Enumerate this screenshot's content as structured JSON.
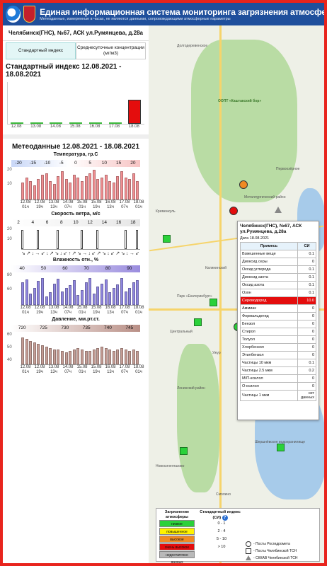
{
  "header": {
    "title": "Единая информационная система мониторинга загрязнения атмосферного возд",
    "subtitle": "Метеоданные, измеренные в часах, не являются данными, сопровождающими атмосферные параметры"
  },
  "station": "Челябинск(ГНС), №67, АСК ул.Румянцева, д.28а",
  "tabs": [
    {
      "label": "Стандартный индекс",
      "active": true
    },
    {
      "label": "Среднесуточные концентрации (мг/м3)",
      "active": false
    }
  ],
  "si": {
    "title": "Стандартный индекс 12.08.2021 - 18.08.2021",
    "dates": [
      "12.08",
      "13.08",
      "14.08",
      "15.08",
      "16.08",
      "17.08",
      "18.08"
    ],
    "values": [
      0.1,
      0.1,
      0.1,
      0.1,
      0.1,
      0.1,
      10.0
    ],
    "colors": [
      "#3cb93c",
      "#3cb93c",
      "#3cb93c",
      "#3cb93c",
      "#3cb93c",
      "#3cb93c",
      "#e40d0d"
    ],
    "max": 10
  },
  "meteo": {
    "title": "Метеоданные 12.08.2021 - 18.08.2021",
    "temp": {
      "title": "Температура, гр.С",
      "scale": [
        "-20",
        "-15",
        "-10",
        "-5",
        "0",
        "5",
        "10",
        "15",
        "20"
      ],
      "values": [
        11,
        14,
        12,
        9,
        13,
        16,
        17,
        12,
        10,
        15,
        18,
        13,
        11,
        16,
        14,
        12,
        15,
        17,
        19,
        13,
        14,
        16,
        12,
        11,
        15,
        18,
        14,
        13,
        17,
        12
      ],
      "axis_top": "20",
      "axis_mid": "10"
    },
    "wind": {
      "title": "Скорость ветра, м/с",
      "scale": [
        "2",
        "4",
        "6",
        "8",
        "10",
        "12",
        "14",
        "16",
        "18"
      ],
      "values": [
        18,
        0,
        0,
        0,
        18,
        0,
        0,
        0,
        0,
        18,
        0,
        0,
        0,
        0,
        0,
        18,
        0,
        0,
        0,
        18,
        0,
        0,
        0,
        0,
        0,
        0,
        18,
        0,
        0,
        18
      ],
      "arrows": "↘↗↓→↙↓↗↘↓↙↑↗↘→↓↙↗↘↓↙↗↘↓→↙↓↗↘",
      "axis_top": "20",
      "axis_mid": "10"
    },
    "humidity": {
      "title": "Влажность отн., %",
      "scale": [
        "40",
        "50",
        "60",
        "70",
        "80",
        "90"
      ],
      "values": [
        80,
        85,
        60,
        70,
        82,
        88,
        55,
        62,
        78,
        86,
        64,
        70,
        75,
        84,
        58,
        66,
        80,
        87,
        60,
        72,
        78,
        85,
        62,
        70,
        76,
        88,
        64,
        70,
        80,
        84
      ],
      "axis_top": "80",
      "axis_mid": "60"
    },
    "pressure": {
      "title": "Давление, мм.рт.ст.",
      "scale": [
        "720",
        "725",
        "730",
        "735",
        "740",
        "745"
      ],
      "values": [
        745,
        744,
        742,
        741,
        740,
        739,
        738,
        737,
        736,
        736,
        735,
        734,
        735,
        736,
        737,
        736,
        735,
        735,
        736,
        737,
        738,
        737,
        736,
        735,
        736,
        737,
        736,
        735,
        736,
        735
      ],
      "axis_top": "60",
      "axis_mid": "50",
      "axis_low": "40"
    },
    "xlabels": [
      "12.08 01ч",
      "12.08 19ч",
      "13.08 13ч",
      "14.08 07ч",
      "15.08 01ч",
      "15.08 19ч",
      "16.08 13ч",
      "17.08 07ч",
      "18.08 01ч"
    ]
  },
  "popup": {
    "title": "Челябинск(ГНС), №67, АСК ул.Румянцева, д.28а",
    "date": "Дата 18.08.2021",
    "headers": [
      "Примесь",
      "СИ"
    ],
    "rows": [
      [
        "Взвешенные веще",
        "0.1"
      ],
      [
        "Диоксид серы",
        "0"
      ],
      [
        "Оксид углерода",
        "0.1"
      ],
      [
        "Диоксид азота",
        "0.1"
      ],
      [
        "Оксид азота",
        "0.1"
      ],
      [
        "Озон",
        "0.1"
      ],
      [
        "Сероводород",
        "10.0"
      ],
      [
        "Аммиак",
        "0"
      ],
      [
        "Формальдегид",
        "0"
      ],
      [
        "Бензол",
        "0"
      ],
      [
        "Стирол",
        "0"
      ],
      [
        "Толуол",
        "0"
      ],
      [
        "Хлорбензол",
        "0"
      ],
      [
        "Этилбензол",
        "0"
      ],
      [
        "Частицы 10 мкм",
        "0.1"
      ],
      [
        "Частицы 2.5 мкм",
        "0.2"
      ],
      [
        "М/П-ксилол",
        "0"
      ],
      [
        "О-ксилол",
        "0"
      ],
      [
        "Частицы 1 мкм",
        "нет данных"
      ]
    ],
    "highlight": 6
  },
  "legend": {
    "h1": "Загрязнение атмосферы",
    "h2": "Стандартный индекс (СИ)",
    "levels": [
      {
        "label": "низкое",
        "color": "#2bd13a",
        "range": "0 - 1"
      },
      {
        "label": "повышенное",
        "color": "#fff200",
        "range": "2 - 4"
      },
      {
        "label": "высокое",
        "color": "#f08a24",
        "range": "5 - 10"
      },
      {
        "label": "очень высокое",
        "color": "#e40d0d",
        "range": "> 10"
      },
      {
        "label": "недостаточно данных",
        "color": "#b9b9b9",
        "range": ""
      }
    ],
    "markers": [
      "- Посты Росгидромета",
      "- Посты Челябинской ТСН",
      "- СККАВ Челябинской ТСН"
    ]
  },
  "map": {
    "labels": [
      "Долгодеревенское",
      "ООПТ «Каштакский бор»",
      "Металлургический район",
      "Калининский",
      "Парк «Екатеринбург»",
      "Ленинский район",
      "Шершнёвское водохранилище",
      "Смолино",
      "Первоозёрное",
      "Новосинеглазово",
      "Кременкуль",
      "Ужур",
      "Центральный"
    ],
    "orange_label": "Металлургический район"
  }
}
